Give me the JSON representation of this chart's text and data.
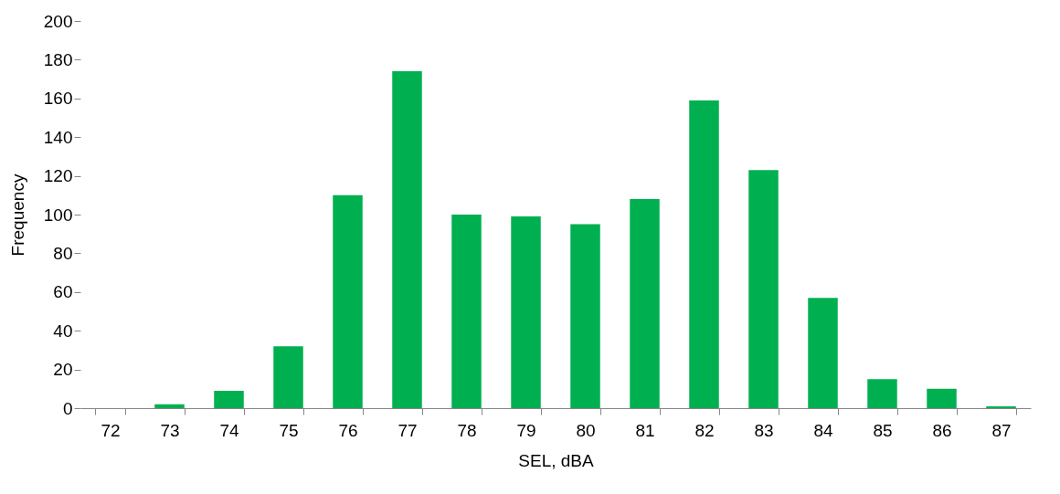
{
  "chart_data": {
    "type": "bar",
    "xlabel": "SEL, dBA",
    "ylabel": "Frequency",
    "categories": [
      "72",
      "73",
      "74",
      "75",
      "76",
      "77",
      "78",
      "79",
      "80",
      "81",
      "82",
      "83",
      "84",
      "85",
      "86",
      "87"
    ],
    "values": [
      0,
      2,
      9,
      32,
      110,
      174,
      100,
      99,
      95,
      108,
      159,
      123,
      57,
      15,
      10,
      1
    ],
    "color": "#00b050",
    "ylim": [
      0,
      200
    ],
    "yticks": [
      0,
      20,
      40,
      60,
      80,
      100,
      120,
      140,
      160,
      180,
      200
    ],
    "grid": false
  }
}
